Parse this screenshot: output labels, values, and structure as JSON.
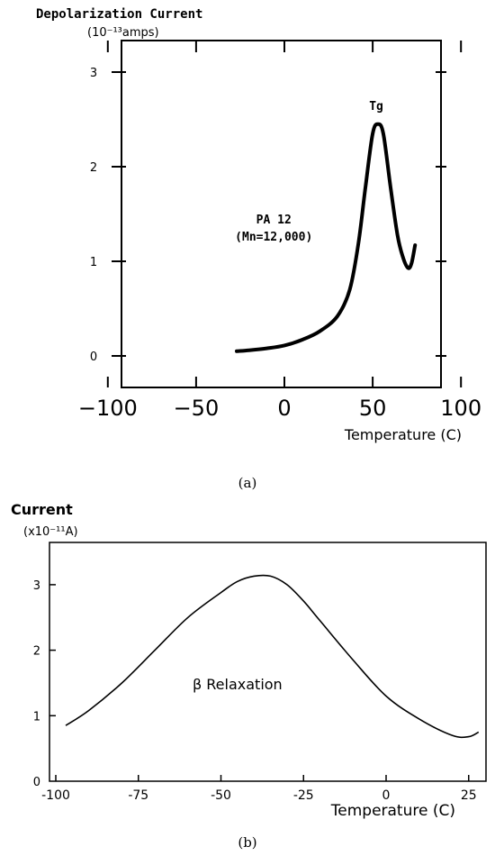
{
  "chart_data": [
    {
      "type": "line",
      "panel_label": "(a)",
      "ylabel": "Depolarization Current",
      "yunit": "(10⁻¹³amps)",
      "xlabel": "Temperature (C)",
      "xlim": [
        -100,
        100
      ],
      "ylim": [
        0,
        3
      ],
      "xticks": [
        "-100",
        "-50",
        "0",
        "50",
        "100"
      ],
      "yticks": [
        "0",
        "1",
        "2",
        "3"
      ],
      "annotations": [
        {
          "text": "Tg",
          "x": 52,
          "y": 2.6
        },
        {
          "text": "PA 12",
          "x": -6,
          "y": 1.4
        },
        {
          "text": "(Mn=12,000)",
          "x": -6,
          "y": 1.22
        }
      ],
      "series": [
        {
          "x": [
            -27,
            -20,
            -10,
            0,
            10,
            20,
            30,
            37,
            42,
            46,
            50,
            53,
            56,
            60,
            64,
            67,
            70,
            72,
            74
          ],
          "y": [
            0.05,
            0.06,
            0.08,
            0.11,
            0.17,
            0.26,
            0.42,
            0.7,
            1.2,
            1.8,
            2.35,
            2.45,
            2.35,
            1.8,
            1.28,
            1.05,
            0.93,
            0.98,
            1.17
          ]
        }
      ]
    },
    {
      "type": "line",
      "panel_label": "(b)",
      "ylabel": "Current",
      "yunit": "(x10⁻¹¹A)",
      "xlabel": "Temperature (C)",
      "xlim": [
        -100,
        28
      ],
      "ylim": [
        0,
        3.6
      ],
      "xticks": [
        "-100",
        "-75",
        "-50",
        "-25",
        "0",
        "25"
      ],
      "yticks": [
        "0",
        "1",
        "2",
        "3"
      ],
      "annotations": [
        {
          "text": "β Relaxation",
          "x": -45,
          "y": 1.4
        }
      ],
      "series": [
        {
          "x": [
            -97,
            -90,
            -80,
            -70,
            -60,
            -50,
            -45,
            -40,
            -35,
            -30,
            -25,
            -20,
            -10,
            0,
            10,
            20,
            25,
            28
          ],
          "y": [
            0.85,
            1.08,
            1.5,
            2.0,
            2.5,
            2.88,
            3.05,
            3.13,
            3.13,
            3.0,
            2.75,
            2.45,
            1.85,
            1.3,
            0.95,
            0.7,
            0.68,
            0.75
          ]
        }
      ]
    }
  ]
}
